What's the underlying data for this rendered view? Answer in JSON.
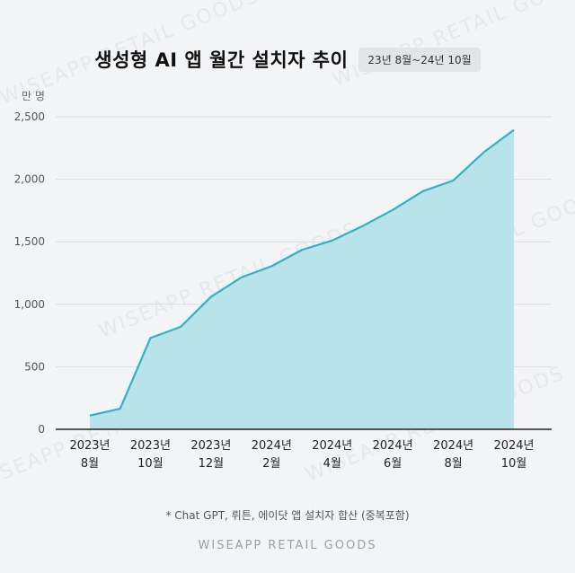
{
  "header": {
    "title": "생성형 AI 앱 월간 설치자 추이",
    "period": "23년 8월~24년 10월"
  },
  "unit": "만 명",
  "footnote": "* Chat GPT, 뤼튼, 에이닷 앱 설치자 합산 (중복포함)",
  "brand": "WISEAPP RETAIL GOODS",
  "colors": {
    "area_fill": "#b8e3ea",
    "line": "#3aaec0",
    "grid": "#d9dbe0",
    "axis": "#222222"
  },
  "chart_data": {
    "type": "area",
    "title": "생성형 AI 앱 월간 설치자 추이",
    "ylabel": "만 명",
    "ylim": [
      0,
      2500
    ],
    "yticks": [
      0,
      500,
      1000,
      1500,
      2000,
      2500
    ],
    "ytick_labels": [
      "0",
      "500",
      "1,000",
      "1,500",
      "2,000",
      "2,500"
    ],
    "grid": true,
    "x": [
      "2023-08",
      "2023-09",
      "2023-10",
      "2023-11",
      "2023-12",
      "2024-01",
      "2024-02",
      "2024-03",
      "2024-04",
      "2024-05",
      "2024-06",
      "2024-07",
      "2024-08",
      "2024-09",
      "2024-10"
    ],
    "xtick_labels": [
      {
        "year": "2023년",
        "month": "8월"
      },
      {
        "year": "2023년",
        "month": "10월"
      },
      {
        "year": "2023년",
        "month": "12월"
      },
      {
        "year": "2024년",
        "month": "2월"
      },
      {
        "year": "2024년",
        "month": "4월"
      },
      {
        "year": "2024년",
        "month": "6월"
      },
      {
        "year": "2024년",
        "month": "8월"
      },
      {
        "year": "2024년",
        "month": "10월"
      }
    ],
    "values": [
      110,
      165,
      730,
      820,
      1060,
      1215,
      1305,
      1435,
      1510,
      1625,
      1755,
      1905,
      1990,
      2215,
      2395
    ]
  }
}
